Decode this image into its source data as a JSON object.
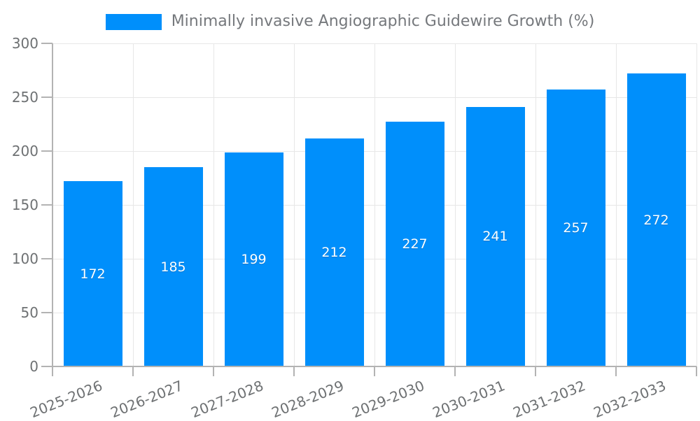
{
  "chart_data": {
    "type": "bar",
    "title": "Minimally invasive Angiographic Guidewire Growth (%)",
    "categories": [
      "2025-2026",
      "2026-2027",
      "2027-2028",
      "2028-2029",
      "2029-2030",
      "2030-2031",
      "2031-2032",
      "2032-2033"
    ],
    "series": [
      {
        "name": "Minimally invasive Angiographic Guidewire Growth (%)",
        "values": [
          172,
          185,
          199,
          212,
          227,
          241,
          257,
          272
        ]
      }
    ],
    "xlabel": "",
    "ylabel": "",
    "ylim": [
      0,
      300
    ],
    "yticks": [
      0,
      50,
      100,
      150,
      200,
      250,
      300
    ],
    "grid": true,
    "legend_position": "top",
    "colors": {
      "bar": "#008FFB",
      "bar_value_label": "#ffffff",
      "axis_tick_label": "#6e7173",
      "legend_text": "#75787c",
      "gridline": "#e7e7e7",
      "axis_line": "#b3b3b3"
    }
  }
}
